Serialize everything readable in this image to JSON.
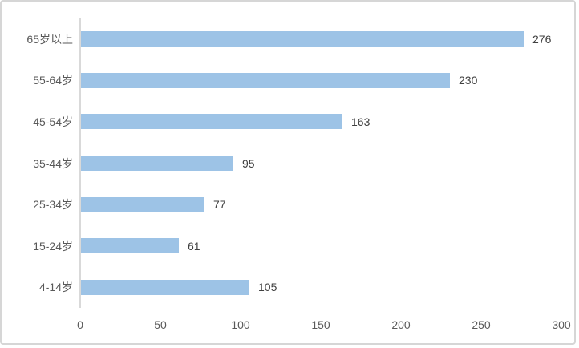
{
  "chart": {
    "accent_color": "#9dc3e6",
    "axis_line_color": "#d9d9d9",
    "label_color": "#595959",
    "value_label_color": "#404040"
  },
  "chart_data": {
    "type": "bar",
    "orientation": "horizontal",
    "categories": [
      "65岁以上",
      "55-64岁",
      "45-54岁",
      "35-44岁",
      "25-34岁",
      "15-24岁",
      "4-14岁"
    ],
    "values": [
      276,
      230,
      163,
      95,
      77,
      61,
      105
    ],
    "data_labels": [
      "276",
      "230",
      "163",
      "95",
      "77",
      "61",
      "105"
    ],
    "title": "",
    "xlabel": "",
    "ylabel": "",
    "xlim": [
      0,
      300
    ],
    "x_ticks": [
      0,
      50,
      100,
      150,
      200,
      250,
      300
    ],
    "x_tick_labels": [
      "0",
      "50",
      "100",
      "150",
      "200",
      "250",
      "300"
    ],
    "grid": false,
    "legend": false
  }
}
